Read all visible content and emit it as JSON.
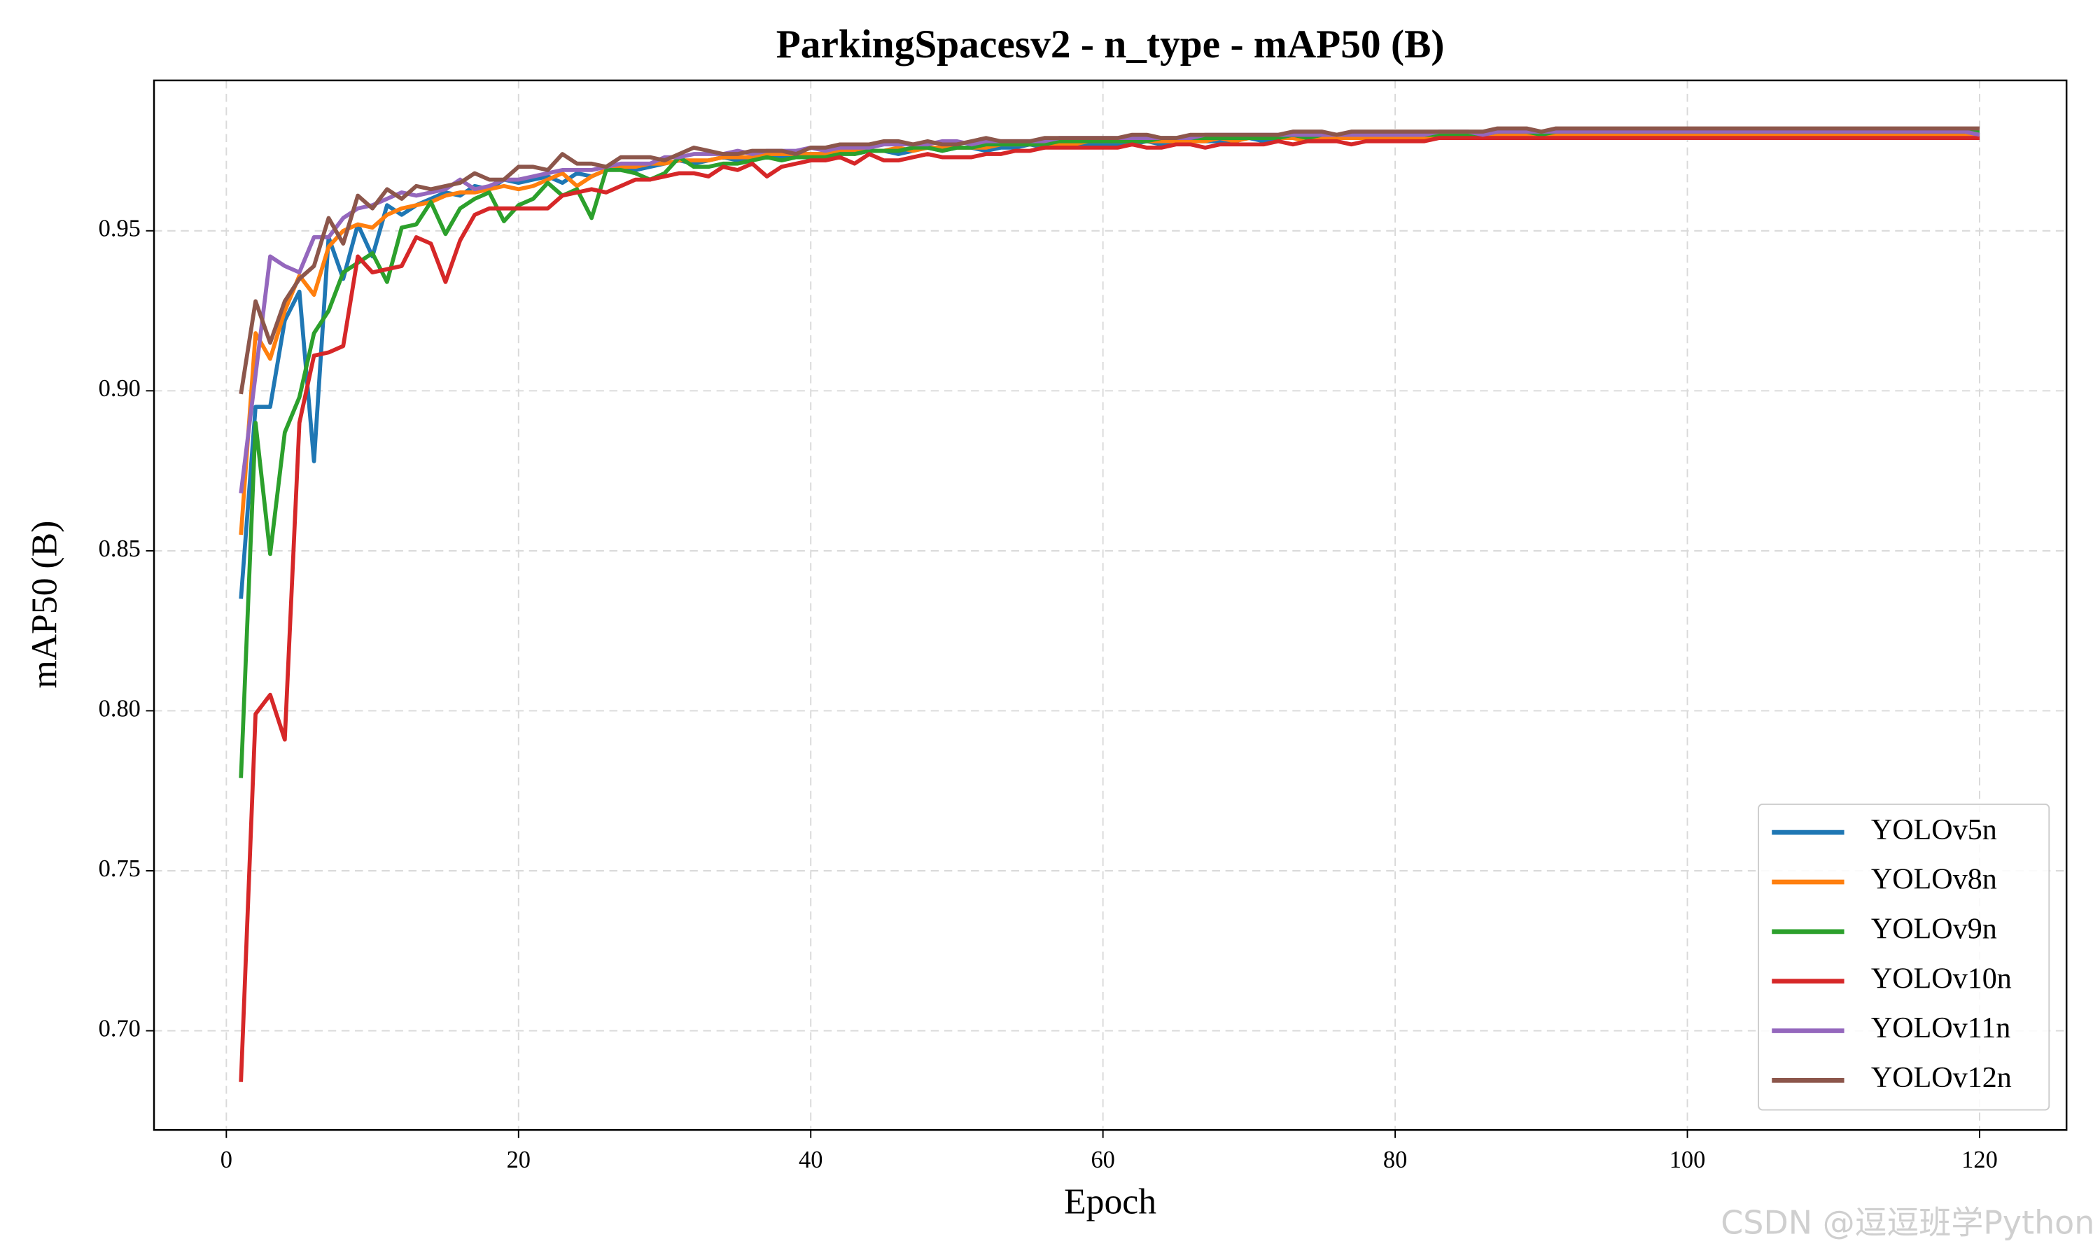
{
  "chart_data": {
    "type": "line",
    "title": "ParkingSpacesv2 - n_type - mAP50 (B)",
    "xlabel": "Epoch",
    "ylabel": "mAP50 (B)",
    "watermark": "CSDN @逗逗班学Python",
    "grid": true,
    "legend": "lower right",
    "xlim": [
      -4.95,
      125.95
    ],
    "xticks": [
      0,
      20,
      40,
      60,
      80,
      100,
      120
    ],
    "ylim": [
      0.669,
      0.997
    ],
    "yticks": [
      {
        "value": 0.7,
        "label": "0.70"
      },
      0.75,
      {
        "value": 0.8,
        "label": "0.80"
      },
      0.85,
      {
        "value": 0.9,
        "label": "0.90"
      },
      0.95
    ],
    "x": [
      1,
      2,
      3,
      4,
      5,
      6,
      7,
      8,
      9,
      10,
      11,
      12,
      13,
      14,
      15,
      16,
      17,
      18,
      19,
      20,
      21,
      22,
      23,
      24,
      25,
      26,
      27,
      28,
      29,
      30,
      31,
      32,
      33,
      34,
      35,
      36,
      37,
      38,
      39,
      40,
      41,
      42,
      43,
      44,
      45,
      46,
      47,
      48,
      49,
      50,
      51,
      52,
      53,
      54,
      55,
      56,
      57,
      58,
      59,
      60,
      61,
      62,
      63,
      64,
      65,
      66,
      67,
      68,
      69,
      70,
      71,
      72,
      73,
      74,
      75,
      76,
      77,
      78,
      79,
      80,
      81,
      82,
      83,
      84,
      85,
      86,
      87,
      88,
      89,
      90,
      91,
      92,
      93,
      94,
      95,
      96,
      97,
      98,
      99,
      100,
      101,
      102,
      103,
      104,
      105,
      106,
      107,
      108,
      109,
      110,
      111,
      112,
      113,
      114,
      115,
      116,
      117,
      118,
      119,
      120
    ],
    "series": [
      {
        "name": "YOLOv5n",
        "color": "#1f77b4",
        "values": [
          0.835,
          0.895,
          0.895,
          0.922,
          0.931,
          0.878,
          0.948,
          0.935,
          0.952,
          0.942,
          0.958,
          0.955,
          0.958,
          0.96,
          0.962,
          0.961,
          0.964,
          0.963,
          0.966,
          0.965,
          0.966,
          0.967,
          0.965,
          0.968,
          0.967,
          0.969,
          0.97,
          0.969,
          0.97,
          0.971,
          0.972,
          0.971,
          0.972,
          0.973,
          0.972,
          0.973,
          0.974,
          0.973,
          0.974,
          0.974,
          0.974,
          0.975,
          0.974,
          0.975,
          0.975,
          0.974,
          0.975,
          0.976,
          0.975,
          0.976,
          0.976,
          0.975,
          0.976,
          0.976,
          0.977,
          0.976,
          0.977,
          0.977,
          0.977,
          0.977,
          0.977,
          0.977,
          0.978,
          0.977,
          0.978,
          0.978,
          0.978,
          0.978,
          0.978,
          0.979,
          0.978,
          0.979,
          0.979,
          0.979,
          0.979,
          0.979,
          0.979,
          0.979,
          0.98,
          0.979,
          0.98,
          0.98,
          0.98,
          0.98,
          0.98,
          0.98,
          0.98,
          0.98,
          0.98,
          0.98,
          0.98,
          0.981,
          0.98,
          0.981,
          0.981,
          0.981,
          0.981,
          0.981,
          0.981,
          0.981,
          0.981,
          0.981,
          0.981,
          0.981,
          0.981,
          0.981,
          0.981,
          0.981,
          0.981,
          0.981,
          0.981,
          0.981,
          0.981,
          0.981,
          0.981,
          0.981,
          0.981,
          0.981,
          0.981,
          0.981
        ]
      },
      {
        "name": "YOLOv8n",
        "color": "#ff7f0e",
        "values": [
          0.855,
          0.918,
          0.91,
          0.925,
          0.936,
          0.93,
          0.945,
          0.95,
          0.952,
          0.951,
          0.955,
          0.957,
          0.958,
          0.959,
          0.961,
          0.962,
          0.962,
          0.963,
          0.964,
          0.963,
          0.964,
          0.966,
          0.968,
          0.964,
          0.967,
          0.969,
          0.97,
          0.97,
          0.971,
          0.971,
          0.972,
          0.972,
          0.972,
          0.973,
          0.973,
          0.973,
          0.974,
          0.974,
          0.974,
          0.974,
          0.974,
          0.975,
          0.975,
          0.975,
          0.975,
          0.976,
          0.975,
          0.976,
          0.976,
          0.976,
          0.976,
          0.976,
          0.977,
          0.977,
          0.977,
          0.977,
          0.977,
          0.977,
          0.978,
          0.978,
          0.978,
          0.978,
          0.978,
          0.978,
          0.978,
          0.978,
          0.978,
          0.979,
          0.978,
          0.979,
          0.979,
          0.979,
          0.979,
          0.978,
          0.979,
          0.979,
          0.979,
          0.979,
          0.979,
          0.979,
          0.979,
          0.979,
          0.979,
          0.98,
          0.979,
          0.98,
          0.98,
          0.98,
          0.98,
          0.98,
          0.98,
          0.98,
          0.98,
          0.98,
          0.98,
          0.98,
          0.98,
          0.98,
          0.98,
          0.98,
          0.98,
          0.98,
          0.98,
          0.98,
          0.98,
          0.98,
          0.98,
          0.98,
          0.98,
          0.98,
          0.98,
          0.98,
          0.98,
          0.98,
          0.98,
          0.98,
          0.98,
          0.98,
          0.98,
          0.98
        ]
      },
      {
        "name": "YOLOv9n",
        "color": "#2ca02c",
        "values": [
          0.779,
          0.89,
          0.849,
          0.887,
          0.898,
          0.918,
          0.925,
          0.937,
          0.94,
          0.943,
          0.934,
          0.951,
          0.952,
          0.959,
          0.949,
          0.957,
          0.96,
          0.962,
          0.953,
          0.958,
          0.96,
          0.965,
          0.961,
          0.963,
          0.954,
          0.969,
          0.969,
          0.968,
          0.966,
          0.968,
          0.973,
          0.97,
          0.97,
          0.971,
          0.971,
          0.972,
          0.973,
          0.972,
          0.973,
          0.973,
          0.973,
          0.974,
          0.974,
          0.975,
          0.975,
          0.975,
          0.976,
          0.976,
          0.975,
          0.976,
          0.976,
          0.977,
          0.977,
          0.977,
          0.977,
          0.977,
          0.978,
          0.978,
          0.978,
          0.978,
          0.978,
          0.978,
          0.978,
          0.979,
          0.979,
          0.979,
          0.979,
          0.979,
          0.979,
          0.979,
          0.979,
          0.979,
          0.98,
          0.979,
          0.98,
          0.98,
          0.98,
          0.98,
          0.98,
          0.98,
          0.98,
          0.98,
          0.98,
          0.98,
          0.98,
          0.98,
          0.981,
          0.981,
          0.981,
          0.98,
          0.981,
          0.981,
          0.981,
          0.981,
          0.981,
          0.981,
          0.981,
          0.981,
          0.981,
          0.981,
          0.981,
          0.981,
          0.981,
          0.981,
          0.981,
          0.981,
          0.981,
          0.981,
          0.981,
          0.981,
          0.981,
          0.981,
          0.981,
          0.981,
          0.981,
          0.981,
          0.981,
          0.981,
          0.981,
          0.981
        ]
      },
      {
        "name": "YOLOv10n",
        "color": "#d62728",
        "values": [
          0.684,
          0.799,
          0.805,
          0.791,
          0.89,
          0.911,
          0.912,
          0.914,
          0.942,
          0.937,
          0.938,
          0.939,
          0.948,
          0.946,
          0.934,
          0.947,
          0.955,
          0.957,
          0.957,
          0.957,
          0.957,
          0.957,
          0.961,
          0.962,
          0.963,
          0.962,
          0.964,
          0.966,
          0.966,
          0.967,
          0.968,
          0.968,
          0.967,
          0.97,
          0.969,
          0.971,
          0.967,
          0.97,
          0.971,
          0.972,
          0.972,
          0.973,
          0.971,
          0.974,
          0.972,
          0.972,
          0.973,
          0.974,
          0.973,
          0.973,
          0.973,
          0.974,
          0.974,
          0.975,
          0.975,
          0.976,
          0.976,
          0.976,
          0.976,
          0.976,
          0.976,
          0.977,
          0.976,
          0.976,
          0.977,
          0.977,
          0.976,
          0.977,
          0.977,
          0.977,
          0.977,
          0.978,
          0.977,
          0.978,
          0.978,
          0.978,
          0.977,
          0.978,
          0.978,
          0.978,
          0.978,
          0.978,
          0.979,
          0.979,
          0.979,
          0.979,
          0.979,
          0.979,
          0.979,
          0.979,
          0.979,
          0.979,
          0.979,
          0.979,
          0.979,
          0.979,
          0.979,
          0.979,
          0.979,
          0.979,
          0.979,
          0.979,
          0.979,
          0.979,
          0.979,
          0.979,
          0.979,
          0.979,
          0.979,
          0.979,
          0.979,
          0.979,
          0.979,
          0.979,
          0.979,
          0.979,
          0.979,
          0.979,
          0.979,
          0.979
        ]
      },
      {
        "name": "YOLOv11n",
        "color": "#9467bd",
        "values": [
          0.868,
          0.905,
          0.942,
          0.939,
          0.937,
          0.948,
          0.948,
          0.954,
          0.957,
          0.958,
          0.96,
          0.962,
          0.961,
          0.962,
          0.963,
          0.966,
          0.963,
          0.964,
          0.966,
          0.966,
          0.967,
          0.968,
          0.969,
          0.969,
          0.969,
          0.97,
          0.971,
          0.971,
          0.971,
          0.973,
          0.973,
          0.974,
          0.974,
          0.974,
          0.975,
          0.974,
          0.975,
          0.975,
          0.975,
          0.976,
          0.975,
          0.976,
          0.976,
          0.976,
          0.977,
          0.977,
          0.977,
          0.977,
          0.978,
          0.978,
          0.977,
          0.978,
          0.978,
          0.978,
          0.978,
          0.978,
          0.979,
          0.979,
          0.979,
          0.979,
          0.979,
          0.979,
          0.979,
          0.979,
          0.979,
          0.979,
          0.98,
          0.98,
          0.98,
          0.98,
          0.98,
          0.98,
          0.98,
          0.98,
          0.98,
          0.98,
          0.98,
          0.98,
          0.98,
          0.98,
          0.98,
          0.98,
          0.981,
          0.981,
          0.981,
          0.98,
          0.981,
          0.981,
          0.981,
          0.981,
          0.981,
          0.981,
          0.981,
          0.981,
          0.981,
          0.981,
          0.981,
          0.981,
          0.981,
          0.981,
          0.981,
          0.981,
          0.981,
          0.981,
          0.981,
          0.981,
          0.981,
          0.981,
          0.981,
          0.981,
          0.981,
          0.981,
          0.981,
          0.981,
          0.981,
          0.981,
          0.981,
          0.981,
          0.981,
          0.98
        ]
      },
      {
        "name": "YOLOv12n",
        "color": "#8c564b",
        "values": [
          0.899,
          0.928,
          0.915,
          0.928,
          0.935,
          0.939,
          0.954,
          0.946,
          0.961,
          0.957,
          0.963,
          0.96,
          0.964,
          0.963,
          0.964,
          0.965,
          0.968,
          0.966,
          0.966,
          0.97,
          0.97,
          0.969,
          0.974,
          0.971,
          0.971,
          0.97,
          0.973,
          0.973,
          0.973,
          0.972,
          0.974,
          0.976,
          0.975,
          0.974,
          0.974,
          0.975,
          0.975,
          0.975,
          0.974,
          0.976,
          0.976,
          0.977,
          0.977,
          0.977,
          0.978,
          0.978,
          0.977,
          0.978,
          0.977,
          0.977,
          0.978,
          0.979,
          0.978,
          0.978,
          0.978,
          0.979,
          0.979,
          0.979,
          0.979,
          0.979,
          0.979,
          0.98,
          0.98,
          0.979,
          0.979,
          0.98,
          0.98,
          0.98,
          0.98,
          0.98,
          0.98,
          0.98,
          0.981,
          0.981,
          0.981,
          0.98,
          0.981,
          0.981,
          0.981,
          0.981,
          0.981,
          0.981,
          0.981,
          0.981,
          0.981,
          0.981,
          0.982,
          0.982,
          0.982,
          0.981,
          0.982,
          0.982,
          0.982,
          0.982,
          0.982,
          0.982,
          0.982,
          0.982,
          0.982,
          0.982,
          0.982,
          0.982,
          0.982,
          0.982,
          0.982,
          0.982,
          0.982,
          0.982,
          0.982,
          0.982,
          0.982,
          0.982,
          0.982,
          0.982,
          0.982,
          0.982,
          0.982,
          0.982,
          0.982,
          0.982
        ]
      }
    ]
  }
}
